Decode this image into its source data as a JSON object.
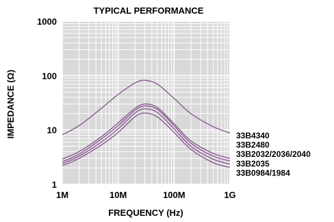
{
  "chart_data": {
    "type": "line",
    "title": "TYPICAL PERFORMANCE",
    "xlabel": "FREQUENCY (Hz)",
    "ylabel": "IMPEDANCE (Ω)",
    "x_scale": "log",
    "y_scale": "log",
    "xlim": [
      1000000,
      1000000000
    ],
    "ylim": [
      1,
      1000
    ],
    "x_ticks": [
      {
        "value": 1000000,
        "label": "1M"
      },
      {
        "value": 10000000,
        "label": "10M"
      },
      {
        "value": 100000000,
        "label": "100M"
      },
      {
        "value": 1000000000,
        "label": "1G"
      }
    ],
    "y_ticks": [
      {
        "value": 1,
        "label": "1"
      },
      {
        "value": 10,
        "label": "10"
      },
      {
        "value": 100,
        "label": "100"
      },
      {
        "value": 1000,
        "label": "1000"
      }
    ],
    "grid": true,
    "background": "#d9d9d9",
    "grid_color": "#ffffff",
    "line_color": "#8a5a93",
    "x": [
      1000000,
      2000000,
      5000000,
      10000000,
      20000000,
      30000000,
      50000000,
      100000000,
      200000000,
      500000000,
      1000000000
    ],
    "series": [
      {
        "name": "33B4340",
        "values": [
          8.2,
          12,
          25,
          45,
          73,
          82,
          70,
          38,
          20,
          11.5,
          8.8
        ]
      },
      {
        "name": "33B2480",
        "values": [
          2.9,
          4.0,
          7.5,
          13.5,
          25,
          30,
          26,
          13,
          6.3,
          3.7,
          3.0
        ]
      },
      {
        "name": "33B2032/2036/2040",
        "values": [
          2.6,
          3.6,
          6.8,
          12,
          23,
          27.5,
          24,
          12,
          5.7,
          3.3,
          2.7
        ]
      },
      {
        "name": "33B2035",
        "values": [
          2.4,
          3.3,
          6.0,
          10.5,
          20.5,
          24.5,
          21,
          10.5,
          5.0,
          2.9,
          2.35
        ]
      },
      {
        "name": "33B0984/1984",
        "values": [
          2.2,
          3.0,
          5.3,
          9.0,
          17.5,
          20.5,
          17.5,
          9.0,
          4.4,
          2.5,
          2.05
        ]
      }
    ]
  }
}
